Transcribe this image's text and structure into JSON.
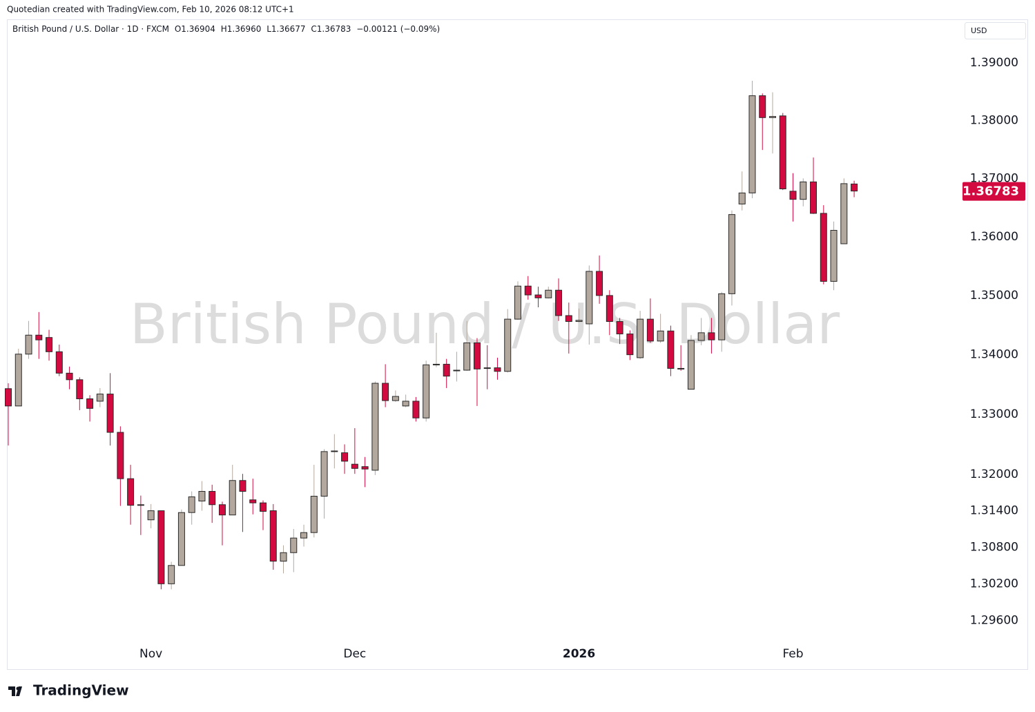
{
  "chart_data": {
    "type": "candlestick",
    "attribution": "Quotedian created with TradingView.com, Feb 10, 2026 08:12 UTC+1",
    "legend": {
      "symbol": "British Pound / U.S. Dollar · 1D · FXCM",
      "open": "O1.36904",
      "high": "H1.36960",
      "low": "L1.36677",
      "close": "C1.36783",
      "change": "−0.00121 (−0.09%)"
    },
    "watermark": "British Pound / U.S. Dollar",
    "currency": "USD",
    "brand": "TradingView",
    "up_color": "#b2a89e",
    "down_color": "#d20a40",
    "border_color": "#2a2a2a",
    "log_scale": true,
    "grid": false,
    "ylim": [
      1.288,
      1.3974
    ],
    "yticks": [
      {
        "value": 1.39,
        "label": "1.39000"
      },
      {
        "value": 1.38,
        "label": "1.38000"
      },
      {
        "value": 1.37,
        "label": "1.37000"
      },
      {
        "value": 1.36,
        "label": "1.36000"
      },
      {
        "value": 1.35,
        "label": "1.35000"
      },
      {
        "value": 1.34,
        "label": "1.34000"
      },
      {
        "value": 1.33,
        "label": "1.33000"
      },
      {
        "value": 1.32,
        "label": "1.32000"
      },
      {
        "value": 1.314,
        "label": "1.31400"
      },
      {
        "value": 1.308,
        "label": "1.30800"
      },
      {
        "value": 1.302,
        "label": "1.30200"
      },
      {
        "value": 1.296,
        "label": "1.29600"
      }
    ],
    "last_price": 1.36783,
    "categories": [
      null,
      null,
      null,
      null,
      null,
      null,
      null,
      null,
      null,
      null,
      null,
      null,
      null,
      null,
      "Nov",
      null,
      null,
      null,
      null,
      null,
      null,
      null,
      null,
      null,
      null,
      null,
      null,
      null,
      null,
      null,
      null,
      null,
      null,
      null,
      "Dec",
      null,
      null,
      null,
      null,
      null,
      null,
      null,
      null,
      null,
      null,
      null,
      null,
      null,
      null,
      null,
      null,
      null,
      null,
      null,
      null,
      null,
      "2026",
      null,
      null,
      null,
      null,
      null,
      null,
      null,
      null,
      null,
      null,
      null,
      null,
      null,
      null,
      null,
      null,
      null,
      null,
      null,
      null,
      "Feb",
      null,
      null,
      null,
      null,
      null,
      null
    ],
    "open": [
      1.3343,
      1.3314,
      1.3401,
      1.3433,
      1.3429,
      1.3405,
      1.3369,
      1.3358,
      1.3326,
      1.3322,
      1.3334,
      1.327,
      1.3193,
      1.315,
      1.3125,
      1.314,
      1.302,
      1.305,
      1.3137,
      1.3156,
      1.3172,
      1.315,
      1.3133,
      1.319,
      1.3158,
      1.3153,
      1.314,
      1.3057,
      1.3071,
      1.3095,
      1.3104,
      1.3164,
      1.3238,
      1.3236,
      1.3217,
      1.3213,
      1.3207,
      1.3352,
      1.3323,
      1.3314,
      1.3322,
      1.3294,
      1.3383,
      1.3384,
      1.3373,
      1.3374,
      1.342,
      1.3378,
      1.3378,
      1.3372,
      1.346,
      1.3516,
      1.3501,
      1.3496,
      1.3509,
      1.3466,
      1.3456,
      1.3452,
      1.3541,
      1.35,
      1.3456,
      1.3435,
      1.3395,
      1.346,
      1.3423,
      1.344,
      1.3377,
      1.3342,
      1.3424,
      1.3437,
      1.3425,
      1.3503,
      1.3656,
      1.3675,
      1.3843,
      1.3805,
      1.3808,
      1.3678,
      1.3664,
      1.3694,
      1.364,
      1.3524,
      1.3588,
      1.36904
    ],
    "high": [
      1.3352,
      1.341,
      1.3457,
      1.3472,
      1.3442,
      1.3417,
      1.338,
      1.3362,
      1.3332,
      1.3344,
      1.3369,
      1.328,
      1.3216,
      1.3165,
      1.3151,
      1.314,
      1.3056,
      1.3142,
      1.3172,
      1.3189,
      1.3183,
      1.3155,
      1.3216,
      1.3201,
      1.3193,
      1.3157,
      1.3151,
      1.3083,
      1.311,
      1.3117,
      1.3216,
      1.3242,
      1.3267,
      1.325,
      1.3277,
      1.3229,
      1.3355,
      1.3384,
      1.334,
      1.3333,
      1.3329,
      1.339,
      1.3437,
      1.3393,
      1.3405,
      1.3457,
      1.3428,
      1.3416,
      1.3395,
      1.3477,
      1.3524,
      1.3533,
      1.3515,
      1.3515,
      1.3529,
      1.3488,
      1.3478,
      1.3551,
      1.3568,
      1.3509,
      1.3462,
      1.3441,
      1.3474,
      1.3495,
      1.3469,
      1.3449,
      1.3416,
      1.3433,
      1.3462,
      1.3462,
      1.3506,
      1.3645,
      1.3712,
      1.3869,
      1.3847,
      1.3849,
      1.3813,
      1.3709,
      1.37,
      1.3736,
      1.3654,
      1.3626,
      1.37,
      1.3696
    ],
    "low": [
      1.3248,
      1.3314,
      1.3393,
      1.3393,
      1.339,
      1.3364,
      1.3342,
      1.3307,
      1.3288,
      1.3312,
      1.3248,
      1.3148,
      1.3117,
      1.31,
      1.3111,
      1.3011,
      1.3011,
      1.305,
      1.3117,
      1.314,
      1.312,
      1.3083,
      1.3133,
      1.3105,
      1.3134,
      1.3108,
      1.3043,
      1.3037,
      1.3039,
      1.3081,
      1.3096,
      1.3127,
      1.321,
      1.3201,
      1.3201,
      1.3179,
      1.3199,
      1.3312,
      1.3321,
      1.3312,
      1.3288,
      1.3288,
      1.3379,
      1.3344,
      1.3355,
      1.3373,
      1.3314,
      1.3342,
      1.3358,
      1.337,
      1.3459,
      1.3493,
      1.348,
      1.3495,
      1.3457,
      1.3402,
      1.3455,
      1.3417,
      1.3486,
      1.3433,
      1.3418,
      1.3391,
      1.3393,
      1.342,
      1.342,
      1.3364,
      1.3373,
      1.3342,
      1.3416,
      1.3402,
      1.3405,
      1.3483,
      1.3645,
      1.3666,
      1.3749,
      1.3743,
      1.368,
      1.3626,
      1.3652,
      1.3639,
      1.3519,
      1.3509,
      1.3588,
      1.36677
    ],
    "close": [
      1.3314,
      1.3401,
      1.3433,
      1.3425,
      1.3405,
      1.3369,
      1.3358,
      1.3326,
      1.331,
      1.3334,
      1.327,
      1.3193,
      1.3149,
      1.3149,
      1.314,
      1.302,
      1.305,
      1.3137,
      1.3163,
      1.3172,
      1.315,
      1.3133,
      1.319,
      1.3172,
      1.3153,
      1.3139,
      1.3057,
      1.3071,
      1.3095,
      1.3104,
      1.3164,
      1.3238,
      1.3239,
      1.3222,
      1.321,
      1.3209,
      1.3352,
      1.3323,
      1.333,
      1.3322,
      1.3294,
      1.3383,
      1.3384,
      1.3364,
      1.3374,
      1.342,
      1.3376,
      1.3377,
      1.3372,
      1.346,
      1.3516,
      1.3501,
      1.3496,
      1.3509,
      1.3466,
      1.3456,
      1.3458,
      1.3541,
      1.35,
      1.3456,
      1.3435,
      1.34,
      1.346,
      1.3423,
      1.344,
      1.3377,
      1.3376,
      1.3424,
      1.3437,
      1.3425,
      1.3503,
      1.3638,
      1.3675,
      1.3843,
      1.3805,
      1.3807,
      1.3682,
      1.3664,
      1.3694,
      1.364,
      1.3524,
      1.3611,
      1.3691,
      1.36783
    ]
  }
}
